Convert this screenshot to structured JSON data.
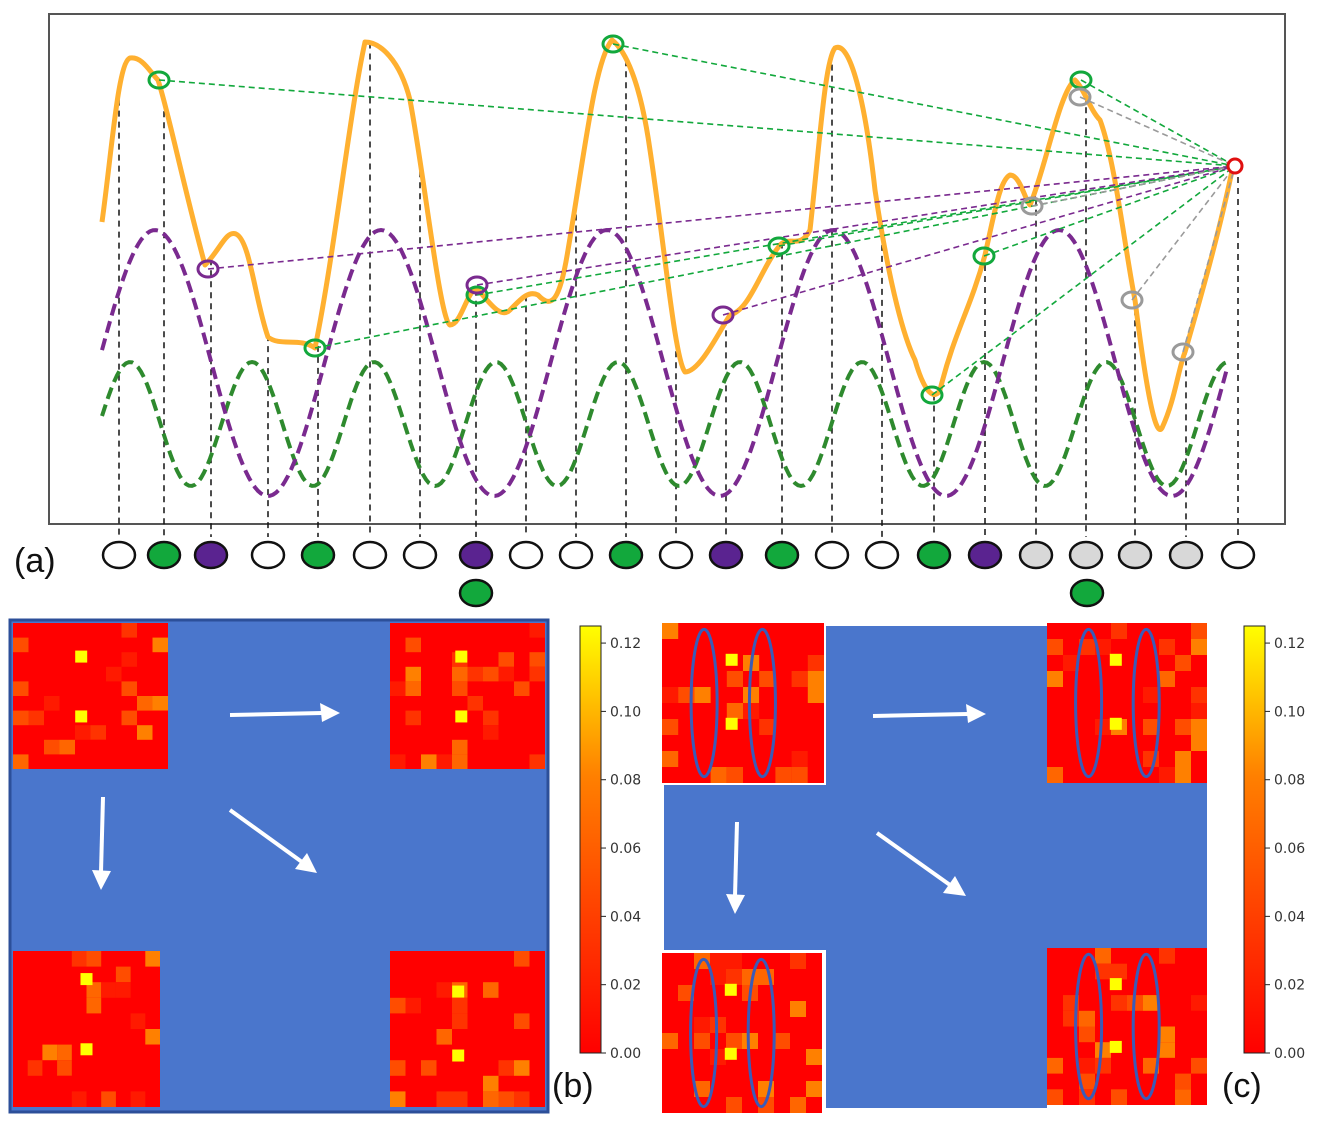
{
  "panel_labels": {
    "a": "(a)",
    "b": "(b)",
    "c": "(c)"
  },
  "colors": {
    "signal": "#ffb030",
    "slow_wave": "#7a2a8f",
    "fast_wave": "#2e8a2e",
    "green_node": "#12a83c",
    "purple_node": "#5a2390",
    "gray_node": "#d8d8d8",
    "target_node": "#e01010",
    "map_background": "#4a76cc",
    "heat_low": "#ff0000",
    "heat_high": "#ffff00"
  },
  "nodes": {
    "top_row": [
      "white",
      "green",
      "purple",
      "white",
      "green",
      "white",
      "white",
      "purple",
      "white",
      "white",
      "green",
      "white",
      "purple",
      "green",
      "white",
      "white",
      "green",
      "purple",
      "gray",
      "gray",
      "gray",
      "gray",
      "white"
    ],
    "second_row": {
      "4": "green",
      "19": "green"
    }
  },
  "colorbar": {
    "ticks": [
      "0.12",
      "0.10",
      "0.08",
      "0.06",
      "0.04",
      "0.02",
      "0.00"
    ],
    "range": [
      0.0,
      0.125
    ]
  }
}
